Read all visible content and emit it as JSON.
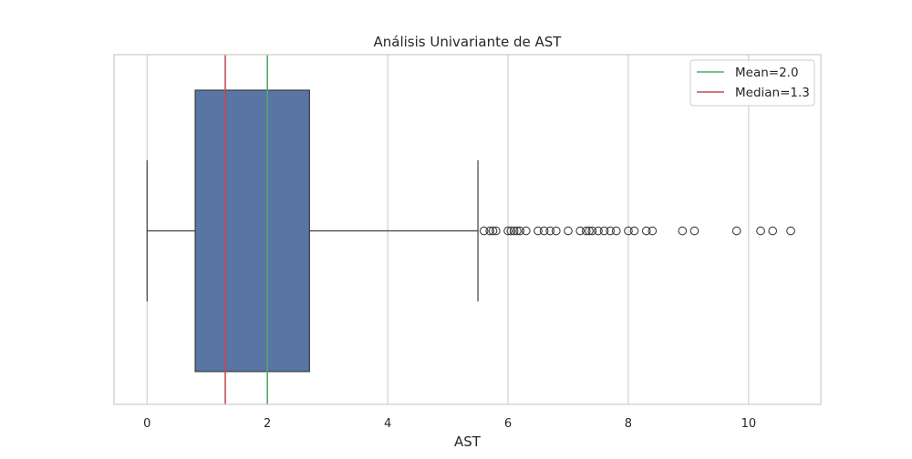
{
  "chart_data": {
    "type": "boxplot",
    "title": "Análisis Univariante de AST",
    "xlabel": "AST",
    "ylabel": "",
    "xlim": [
      -0.55,
      11.2
    ],
    "xticks": [
      0,
      2,
      4,
      6,
      8,
      10
    ],
    "xtick_labels": [
      "0",
      "2",
      "4",
      "6",
      "8",
      "10"
    ],
    "grid": "vertical",
    "orientation": "horizontal",
    "box": {
      "whisker_low": 0.0,
      "q1": 0.8,
      "median": 1.3,
      "q3": 2.7,
      "whisker_high": 5.5,
      "color": "#5875a4",
      "edge_color": "#3f3f3f"
    },
    "outliers": [
      5.6,
      5.7,
      5.75,
      5.8,
      6.0,
      6.05,
      6.1,
      6.15,
      6.2,
      6.3,
      6.5,
      6.6,
      6.7,
      6.8,
      7.0,
      7.2,
      7.3,
      7.35,
      7.4,
      7.5,
      7.6,
      7.7,
      7.8,
      8.0,
      8.1,
      8.3,
      8.4,
      8.9,
      9.1,
      9.8,
      10.2,
      10.4,
      10.7
    ],
    "reference_lines": [
      {
        "label": "Mean=2.0",
        "value": 2.0,
        "color": "#55a868"
      },
      {
        "label": "Median=1.3",
        "value": 1.3,
        "color": "#c44e52"
      }
    ],
    "legend": {
      "position": "top-right",
      "entries": [
        {
          "label": "Mean=2.0",
          "color": "#55a868"
        },
        {
          "label": "Median=1.3",
          "color": "#c44e52"
        }
      ]
    }
  }
}
